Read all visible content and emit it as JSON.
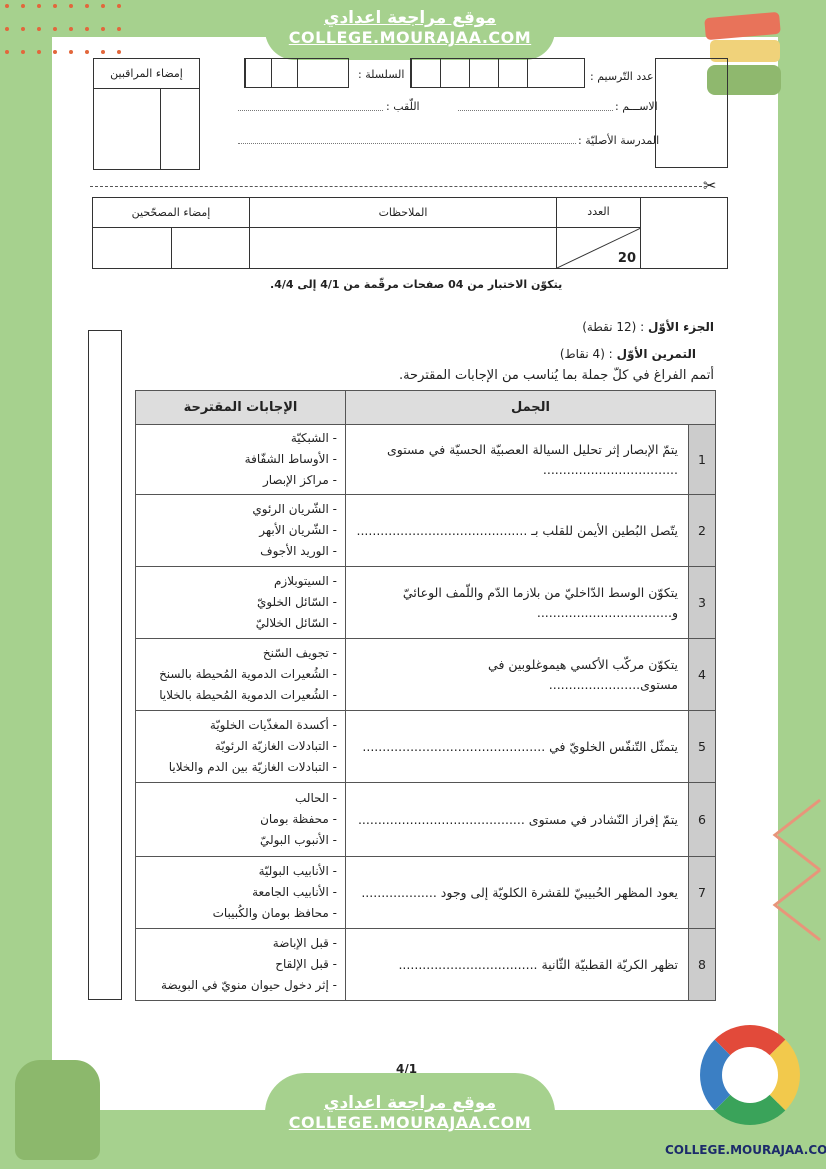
{
  "site": {
    "arabic": "موقع مراجعة اعدادي",
    "url": "COLLEGE.MOURAJAA.COM",
    "logo_text": "COLLEGE.MOURAJAA.COM"
  },
  "header": {
    "registration_label": "عدد التّرسيم :",
    "series_label": "السلسلة :",
    "name_label": "الاســـم :",
    "surname_label": "اللّقب :",
    "school_label": "المدرسة الأصليّة :",
    "supervisors_label": "إمضاء المراقبين"
  },
  "grading": {
    "score_label": "العدد",
    "score_total": "20",
    "notes_label": "الملاحظات",
    "correctors_label": "إمضاء المصحّحين"
  },
  "page_note": "يتكوّن الاختبار من 04 صفحات مرقّمة من 4/1 إلى 4/4.",
  "part": {
    "title": "الجزء الأوّل",
    "points": ": (12 نقطة)"
  },
  "exercise": {
    "title": "التمرين الأوّل",
    "points": ": (4 نقاط)",
    "instruction": "أتمم الفراغ في كلّ جملة بما يُناسب من الإجابات المقترحة."
  },
  "table": {
    "headers": {
      "sentences": "الجمل",
      "answers": "الإجابات المقترحة"
    },
    "rows": [
      {
        "n": "1",
        "sentence": "يتمّ الإبصار إثر تحليل السيالة العصبيّة الحسيّة  في مستوى ..................................",
        "answers": [
          "- الشبكيّة",
          "- الأوساط الشفّافة",
          "- مراكز الإبصار"
        ]
      },
      {
        "n": "2",
        "sentence": "يتّصل البُطين الأيمن للقلب بـ ...........................................",
        "answers": [
          "- الشّريان الرئوي",
          "- الشّريان الأبهر",
          "- الوريد الأجوف"
        ]
      },
      {
        "n": "3",
        "sentence": "يتكوّن الوسط الدّاخليّ من بلازما الدّم  واللّمف الوعائيّ و..................................",
        "answers": [
          "- السيتوبلازم",
          "- السّائل الخلويّ",
          "- السّائل الخلاليّ"
        ]
      },
      {
        "n": "4",
        "sentence": "يتكوّن مركّب الأكسي هيموغلوبين في مستوى.......................",
        "answers": [
          "- تجويف السّنخ",
          "- الشُعيرات الدموية المُحيطة بالسنخ",
          "- الشُعيرات الدموية المُحيطة بالخلايا"
        ]
      },
      {
        "n": "5",
        "sentence": "يتمثّل التّنفّس الخلويّ في ..............................................",
        "answers": [
          "- أكسدة المغذّيات الخلويّة",
          "- التبادلات الغازيّة الرئويّة",
          "- التبادلات الغازيّة بين الدم والخلايا"
        ]
      },
      {
        "n": "6",
        "sentence": "يتمّ إفراز النّشادر في مستوى ..........................................",
        "answers": [
          "- الحالب",
          "- محفظة بومان",
          "- الأنبوب البوليّ"
        ]
      },
      {
        "n": "7",
        "sentence": "يعود المظهر الحُبيبيّ للقشرة الكلويّة إلى وجود ...................",
        "answers": [
          "- الأنابيب البوليّة",
          "- الأنابيب الجامعة",
          "- محافظ بومان والكُبيبات"
        ]
      },
      {
        "n": "8",
        "sentence": "تظهر الكريّة القطبيّة الثّانية ...................................",
        "answers": [
          "- قبل الإباضة",
          "- قبل الإلقاح",
          "- إثر دخول حيوان منويّ في البويضة"
        ]
      }
    ]
  },
  "footer": {
    "page_number": "4/1"
  }
}
